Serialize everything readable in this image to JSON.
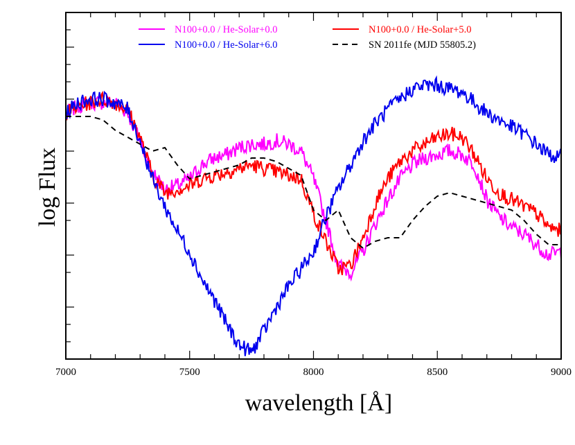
{
  "chart_data": {
    "type": "line",
    "title": "",
    "xlabel": "wavelength [Å]",
    "ylabel": "log Flux",
    "xlim": [
      7000,
      9000
    ],
    "ylim": [
      0,
      1
    ],
    "x_ticks": [
      7000,
      7500,
      8000,
      8500,
      9000
    ],
    "x_tick_labels": [
      "7000",
      "7500",
      "8000",
      "8500",
      "9000"
    ],
    "y_tick_labels_shown": false,
    "grid": false,
    "legend_position": "top-center",
    "series": [
      {
        "name": "N100+0.0 / He-Solar+0.0",
        "color": "#ff00ff",
        "style": "solid",
        "noise": 0.022,
        "x": [
          7000,
          7050,
          7100,
          7150,
          7200,
          7250,
          7300,
          7350,
          7400,
          7450,
          7500,
          7550,
          7600,
          7650,
          7700,
          7750,
          7800,
          7850,
          7900,
          7950,
          8000,
          8050,
          8100,
          8150,
          8200,
          8250,
          8300,
          8350,
          8400,
          8450,
          8500,
          8550,
          8600,
          8650,
          8700,
          8750,
          8800,
          8850,
          8900,
          8950,
          9000
        ],
        "y": [
          0.71,
          0.73,
          0.74,
          0.74,
          0.74,
          0.71,
          0.63,
          0.54,
          0.49,
          0.5,
          0.52,
          0.56,
          0.58,
          0.59,
          0.61,
          0.62,
          0.62,
          0.63,
          0.62,
          0.6,
          0.52,
          0.4,
          0.27,
          0.25,
          0.31,
          0.39,
          0.46,
          0.52,
          0.56,
          0.58,
          0.59,
          0.6,
          0.59,
          0.56,
          0.46,
          0.41,
          0.38,
          0.36,
          0.33,
          0.3,
          0.31
        ]
      },
      {
        "name": "N100+0.0 / He-Solar+5.0",
        "color": "#ff0000",
        "style": "solid",
        "noise": 0.022,
        "x": [
          7000,
          7050,
          7100,
          7150,
          7200,
          7250,
          7300,
          7350,
          7400,
          7450,
          7500,
          7550,
          7600,
          7650,
          7700,
          7750,
          7800,
          7850,
          7900,
          7950,
          8000,
          8050,
          8100,
          8150,
          8200,
          8250,
          8300,
          8350,
          8400,
          8450,
          8500,
          8550,
          8600,
          8650,
          8700,
          8750,
          8800,
          8850,
          8900,
          8950,
          9000
        ],
        "y": [
          0.71,
          0.73,
          0.74,
          0.75,
          0.74,
          0.72,
          0.64,
          0.53,
          0.48,
          0.49,
          0.5,
          0.52,
          0.53,
          0.54,
          0.55,
          0.56,
          0.55,
          0.54,
          0.53,
          0.52,
          0.42,
          0.34,
          0.26,
          0.27,
          0.35,
          0.45,
          0.52,
          0.57,
          0.6,
          0.62,
          0.64,
          0.65,
          0.64,
          0.59,
          0.52,
          0.48,
          0.46,
          0.44,
          0.42,
          0.38,
          0.37
        ]
      },
      {
        "name": "N100+0.0 / He-Solar+6.0",
        "color": "#0000ee",
        "style": "solid",
        "noise": 0.022,
        "x": [
          7000,
          7050,
          7100,
          7150,
          7200,
          7250,
          7300,
          7350,
          7400,
          7450,
          7500,
          7550,
          7600,
          7650,
          7700,
          7750,
          7800,
          7850,
          7900,
          7950,
          8000,
          8050,
          8100,
          8150,
          8200,
          8250,
          8300,
          8350,
          8400,
          8450,
          8500,
          8550,
          8600,
          8650,
          8700,
          8750,
          8800,
          8850,
          8900,
          8950,
          9000
        ],
        "y": [
          0.71,
          0.74,
          0.75,
          0.75,
          0.74,
          0.72,
          0.63,
          0.52,
          0.44,
          0.37,
          0.31,
          0.23,
          0.17,
          0.1,
          0.04,
          0.02,
          0.08,
          0.15,
          0.21,
          0.26,
          0.31,
          0.41,
          0.49,
          0.56,
          0.63,
          0.68,
          0.72,
          0.75,
          0.78,
          0.79,
          0.79,
          0.78,
          0.77,
          0.74,
          0.71,
          0.69,
          0.67,
          0.65,
          0.62,
          0.59,
          0.58
        ]
      },
      {
        "name": "SN 2011fe (MJD 55805.2)",
        "color": "#000000",
        "style": "dashed",
        "noise": 0,
        "x": [
          7000,
          7050,
          7100,
          7150,
          7200,
          7250,
          7300,
          7350,
          7400,
          7450,
          7500,
          7550,
          7600,
          7650,
          7700,
          7750,
          7800,
          7850,
          7900,
          7950,
          8000,
          8050,
          8100,
          8150,
          8200,
          8250,
          8300,
          8350,
          8400,
          8450,
          8500,
          8550,
          8600,
          8650,
          8700,
          8750,
          8800,
          8850,
          8900,
          8950,
          9000
        ],
        "y": [
          0.7,
          0.7,
          0.7,
          0.69,
          0.66,
          0.64,
          0.62,
          0.6,
          0.61,
          0.56,
          0.52,
          0.53,
          0.54,
          0.55,
          0.56,
          0.58,
          0.58,
          0.57,
          0.55,
          0.53,
          0.43,
          0.4,
          0.43,
          0.35,
          0.32,
          0.34,
          0.35,
          0.35,
          0.4,
          0.44,
          0.47,
          0.48,
          0.47,
          0.46,
          0.45,
          0.44,
          0.43,
          0.4,
          0.36,
          0.33,
          0.33
        ]
      }
    ]
  }
}
